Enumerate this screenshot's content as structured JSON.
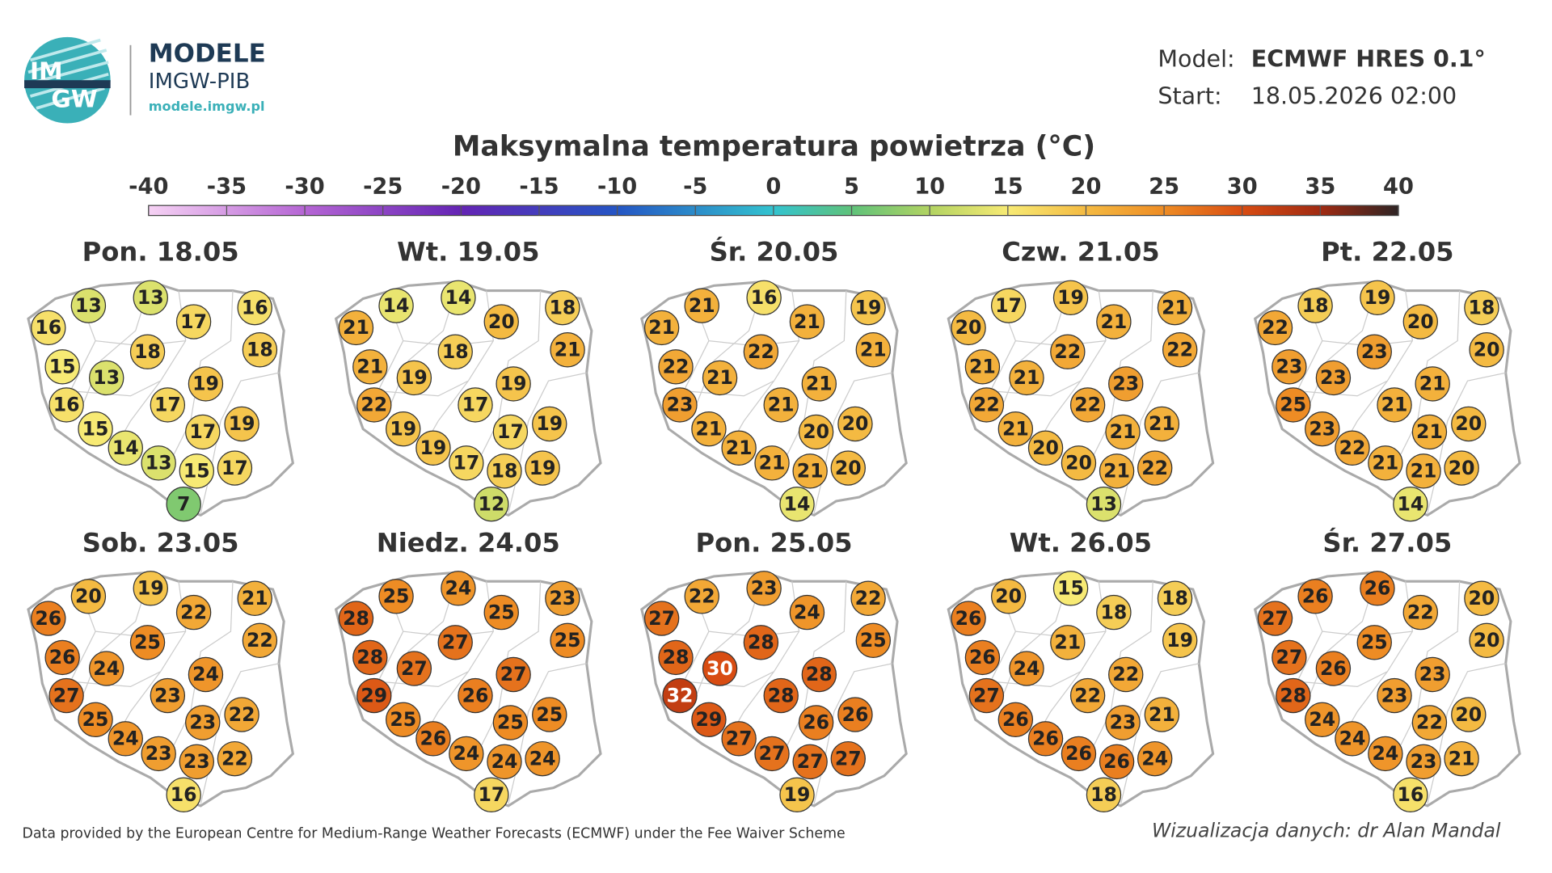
{
  "header": {
    "logo_top": "IM",
    "logo_bottom": "GW",
    "brand": "MODELE",
    "org": "IMGW-PIB",
    "url": "modele.imgw.pl",
    "model_label": "Model:",
    "model": "ECMWF HRES 0.1°",
    "start_label": "Start:",
    "start": "18.05.2026 02:00"
  },
  "title": "Maksymalna temperatura powietrza (°C)",
  "colorbar": {
    "ticks": [
      -40,
      -35,
      -30,
      -25,
      -20,
      -15,
      -10,
      -5,
      0,
      5,
      10,
      15,
      20,
      25,
      30,
      35,
      40
    ]
  },
  "maps": [
    {
      "day": "Pon. 18.05",
      "values": [
        16,
        13,
        13,
        17,
        16,
        18,
        18,
        15,
        13,
        19,
        16,
        17,
        17,
        19,
        15,
        14,
        13,
        15,
        17,
        7
      ]
    },
    {
      "day": "Wt. 19.05",
      "values": [
        21,
        14,
        14,
        20,
        18,
        18,
        21,
        21,
        19,
        19,
        22,
        17,
        17,
        19,
        19,
        19,
        17,
        18,
        19,
        12
      ]
    },
    {
      "day": "Śr. 20.05",
      "values": [
        21,
        21,
        16,
        21,
        19,
        22,
        21,
        22,
        21,
        21,
        23,
        21,
        20,
        20,
        21,
        21,
        21,
        21,
        20,
        14
      ]
    },
    {
      "day": "Czw. 21.05",
      "values": [
        20,
        17,
        19,
        21,
        21,
        22,
        22,
        21,
        21,
        23,
        22,
        22,
        21,
        21,
        21,
        20,
        20,
        21,
        22,
        13
      ]
    },
    {
      "day": "Pt. 22.05",
      "values": [
        22,
        18,
        19,
        20,
        18,
        23,
        20,
        23,
        23,
        21,
        25,
        21,
        21,
        20,
        23,
        22,
        21,
        21,
        20,
        14
      ]
    },
    {
      "day": "Sob. 23.05",
      "values": [
        26,
        20,
        19,
        22,
        21,
        25,
        22,
        26,
        24,
        24,
        27,
        23,
        23,
        22,
        25,
        24,
        23,
        23,
        22,
        16
      ]
    },
    {
      "day": "Niedz. 24.05",
      "values": [
        28,
        25,
        24,
        25,
        23,
        27,
        25,
        28,
        27,
        27,
        29,
        26,
        25,
        25,
        25,
        26,
        24,
        24,
        24,
        17
      ]
    },
    {
      "day": "Pon. 25.05",
      "values": [
        27,
        22,
        23,
        24,
        22,
        28,
        25,
        28,
        30,
        28,
        32,
        28,
        26,
        26,
        29,
        27,
        27,
        27,
        27,
        19
      ]
    },
    {
      "day": "Wt. 26.05",
      "values": [
        26,
        20,
        15,
        18,
        18,
        21,
        19,
        26,
        24,
        22,
        27,
        22,
        23,
        21,
        26,
        26,
        26,
        26,
        24,
        18
      ]
    },
    {
      "day": "Śr. 27.05",
      "values": [
        27,
        26,
        26,
        22,
        20,
        25,
        20,
        27,
        26,
        23,
        28,
        23,
        22,
        20,
        24,
        24,
        24,
        23,
        21,
        16
      ]
    }
  ],
  "footer": {
    "source": "Data provided by the European Centre for Medium-Range Weather Forecasts (ECMWF) under the Fee Waiver Scheme",
    "credit": "Wizualizacja danych: dr Alan Mandal"
  }
}
